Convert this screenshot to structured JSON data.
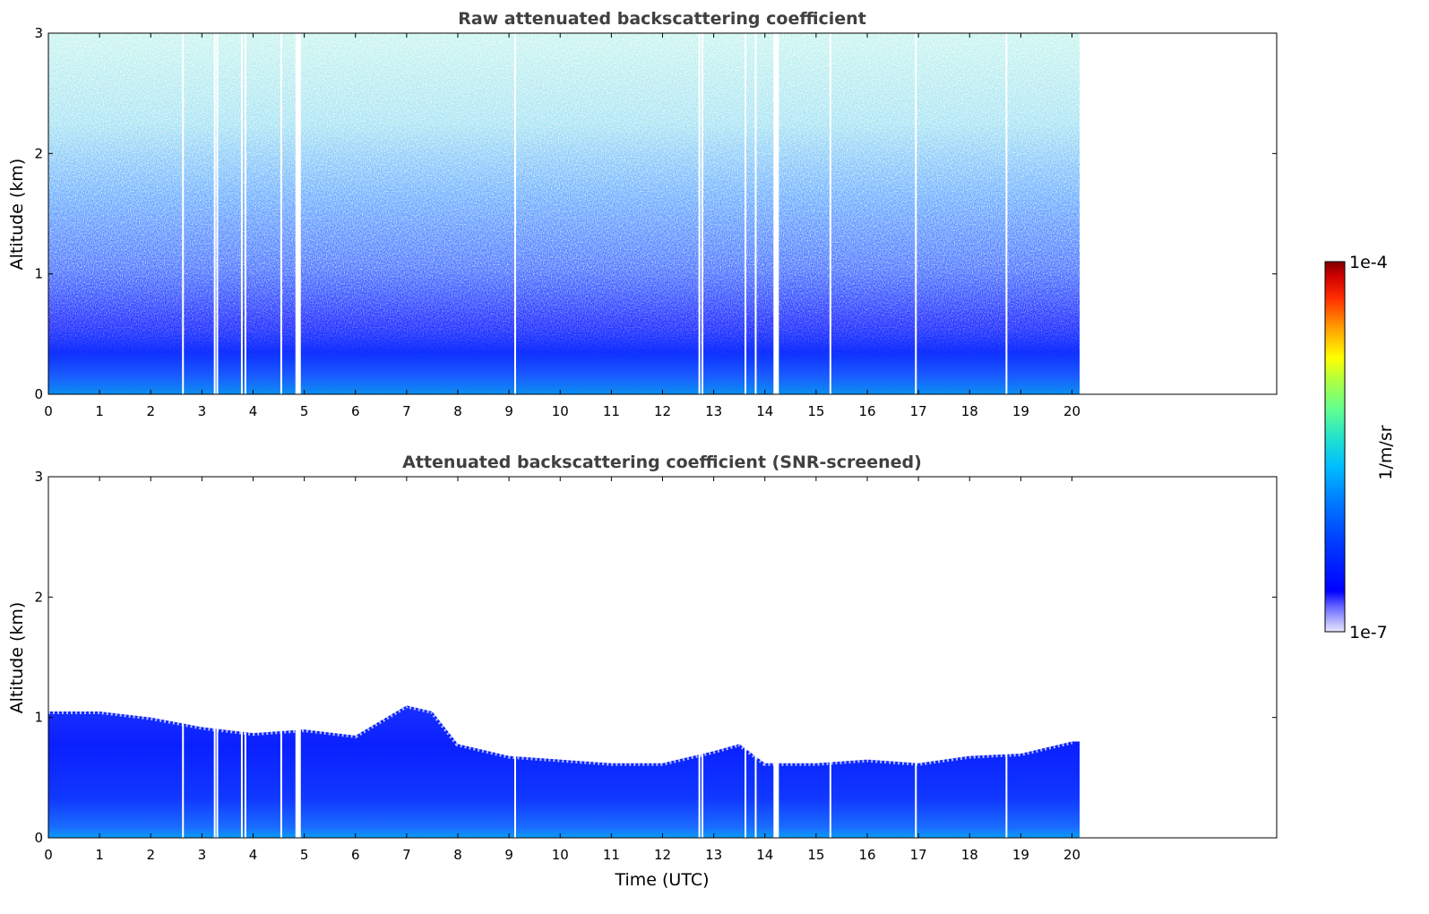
{
  "chart_data": [
    {
      "type": "heatmap",
      "title": "Raw attenuated backscattering coefficient",
      "xlabel": "",
      "ylabel": "Altitude (km)",
      "xlim": [
        0,
        24
      ],
      "ylim": [
        0,
        3
      ],
      "xticks": [
        0,
        1,
        2,
        3,
        4,
        5,
        6,
        7,
        8,
        9,
        10,
        11,
        12,
        13,
        14,
        15,
        16,
        17,
        18,
        19,
        20
      ],
      "yticks": [
        0,
        1,
        2,
        3
      ],
      "data_extent_x": [
        0,
        20.15
      ],
      "gaps_x": [
        2.63,
        3.25,
        3.3,
        3.78,
        3.85,
        4.55,
        4.88,
        9.12,
        12.72,
        12.78,
        13.62,
        13.82,
        14.22,
        15.28,
        16.95,
        18.72
      ],
      "description_profile": [
        {
          "t": 0,
          "cloud_top": 0.45
        },
        {
          "t": 2,
          "cloud_top": 0.5
        },
        {
          "t": 6,
          "cloud_top": 0.6
        },
        {
          "t": 10,
          "cloud_top": 0.5
        },
        {
          "t": 20,
          "cloud_top": 0.45
        }
      ]
    },
    {
      "type": "heatmap",
      "title": "Attenuated backscattering coefficient (SNR-screened)",
      "xlabel": "Time (UTC)",
      "ylabel": "Altitude (km)",
      "xlim": [
        0,
        24
      ],
      "ylim": [
        0,
        3
      ],
      "xticks": [
        0,
        1,
        2,
        3,
        4,
        5,
        6,
        7,
        8,
        9,
        10,
        11,
        12,
        13,
        14,
        15,
        16,
        17,
        18,
        19,
        20
      ],
      "yticks": [
        0,
        1,
        2,
        3
      ],
      "data_extent_x": [
        0,
        20.15
      ],
      "gaps_x": [
        2.63,
        3.25,
        3.3,
        3.78,
        3.85,
        4.55,
        4.88,
        9.12,
        12.72,
        12.78,
        13.62,
        13.82,
        14.22,
        15.28,
        16.95,
        18.72
      ],
      "boundary_layer_top": [
        {
          "t": 0,
          "h": 1.05
        },
        {
          "t": 1,
          "h": 1.05
        },
        {
          "t": 2,
          "h": 1.0
        },
        {
          "t": 3,
          "h": 0.92
        },
        {
          "t": 4,
          "h": 0.87
        },
        {
          "t": 5,
          "h": 0.9
        },
        {
          "t": 6,
          "h": 0.85
        },
        {
          "t": 7,
          "h": 1.1
        },
        {
          "t": 7.5,
          "h": 1.05
        },
        {
          "t": 8,
          "h": 0.78
        },
        {
          "t": 9,
          "h": 0.68
        },
        {
          "t": 10,
          "h": 0.65
        },
        {
          "t": 11,
          "h": 0.62
        },
        {
          "t": 12,
          "h": 0.62
        },
        {
          "t": 13,
          "h": 0.72
        },
        {
          "t": 13.5,
          "h": 0.78
        },
        {
          "t": 14,
          "h": 0.62
        },
        {
          "t": 15,
          "h": 0.62
        },
        {
          "t": 16,
          "h": 0.65
        },
        {
          "t": 17,
          "h": 0.62
        },
        {
          "t": 18,
          "h": 0.68
        },
        {
          "t": 19,
          "h": 0.7
        },
        {
          "t": 20,
          "h": 0.8
        }
      ]
    }
  ],
  "colorbar": {
    "label": "1/m/sr",
    "max_label": "1e-4",
    "min_label": "1e-7",
    "scale": "log",
    "colormap": "jet"
  },
  "colors": {
    "frame": "#000000",
    "title": "#404040"
  }
}
